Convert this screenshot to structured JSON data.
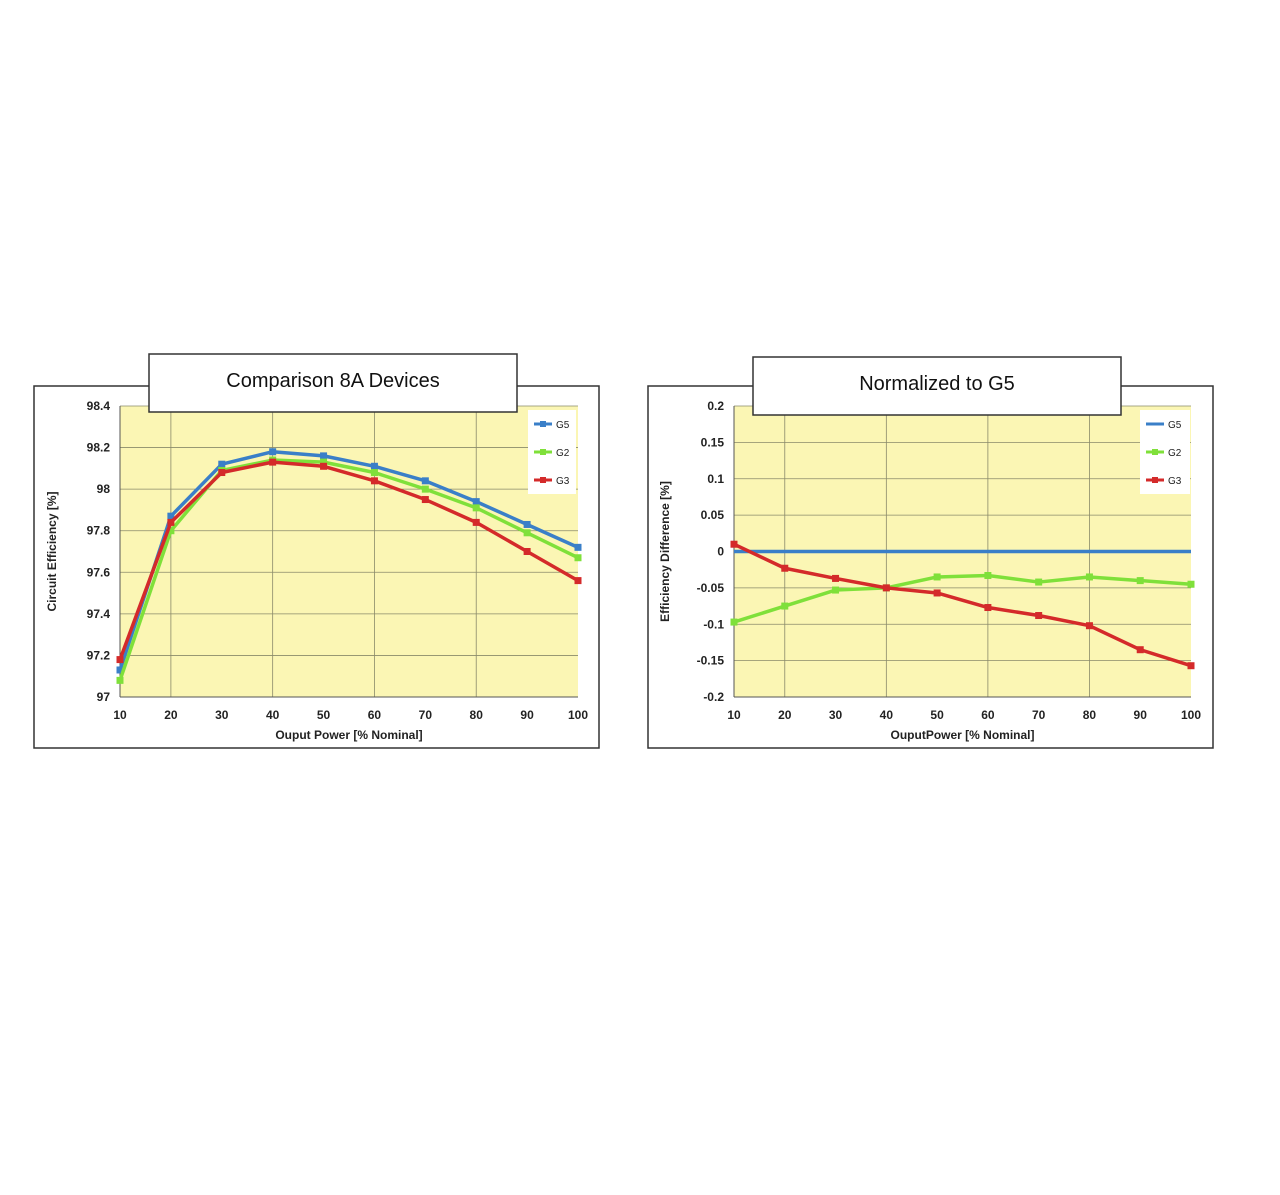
{
  "chart_data": [
    {
      "type": "line",
      "title": "Comparison 8A Devices",
      "xlabel": "Ouput Power [% Nominal]",
      "ylabel": "Circuit Efficiency [%]",
      "x": [
        10,
        20,
        30,
        40,
        50,
        60,
        70,
        80,
        90,
        100
      ],
      "ylim": [
        97,
        98.4
      ],
      "yticks": [
        97,
        97.2,
        97.4,
        97.6,
        97.8,
        98,
        98.2,
        98.4
      ],
      "grid": true,
      "legend_position": "top-right",
      "series": [
        {
          "name": "G5",
          "color": "#3a7fc8",
          "values": [
            97.13,
            97.87,
            98.12,
            98.18,
            98.16,
            98.11,
            98.04,
            97.94,
            97.83,
            97.72
          ]
        },
        {
          "name": "G2",
          "color": "#7fe03a",
          "values": [
            97.08,
            97.8,
            98.09,
            98.14,
            98.13,
            98.08,
            98.0,
            97.91,
            97.79,
            97.67
          ]
        },
        {
          "name": "G3",
          "color": "#d42a2a",
          "values": [
            97.18,
            97.84,
            98.08,
            98.13,
            98.11,
            98.04,
            97.95,
            97.84,
            97.7,
            97.56
          ]
        }
      ]
    },
    {
      "type": "line",
      "title": "Normalized to G5",
      "xlabel": "OuputPower [% Nominal]",
      "ylabel": "Efficiency Difference [%]",
      "x": [
        10,
        20,
        30,
        40,
        50,
        60,
        70,
        80,
        90,
        100
      ],
      "ylim": [
        -0.2,
        0.2
      ],
      "yticks": [
        -0.2,
        -0.15,
        -0.1,
        -0.05,
        0,
        0.05,
        0.1,
        0.15,
        0.2
      ],
      "grid": true,
      "legend_position": "top-right",
      "series": [
        {
          "name": "G5",
          "color": "#3a7fc8",
          "values": [
            0,
            0,
            0,
            0,
            0,
            0,
            0,
            0,
            0,
            0
          ],
          "markers": false
        },
        {
          "name": "G2",
          "color": "#7fe03a",
          "values": [
            -0.097,
            -0.075,
            -0.053,
            -0.05,
            -0.035,
            -0.033,
            -0.042,
            -0.035,
            -0.04,
            -0.045
          ]
        },
        {
          "name": "G3",
          "color": "#d42a2a",
          "values": [
            0.01,
            -0.023,
            -0.037,
            -0.05,
            -0.057,
            -0.077,
            -0.088,
            -0.102,
            -0.135,
            -0.157
          ]
        }
      ]
    }
  ]
}
